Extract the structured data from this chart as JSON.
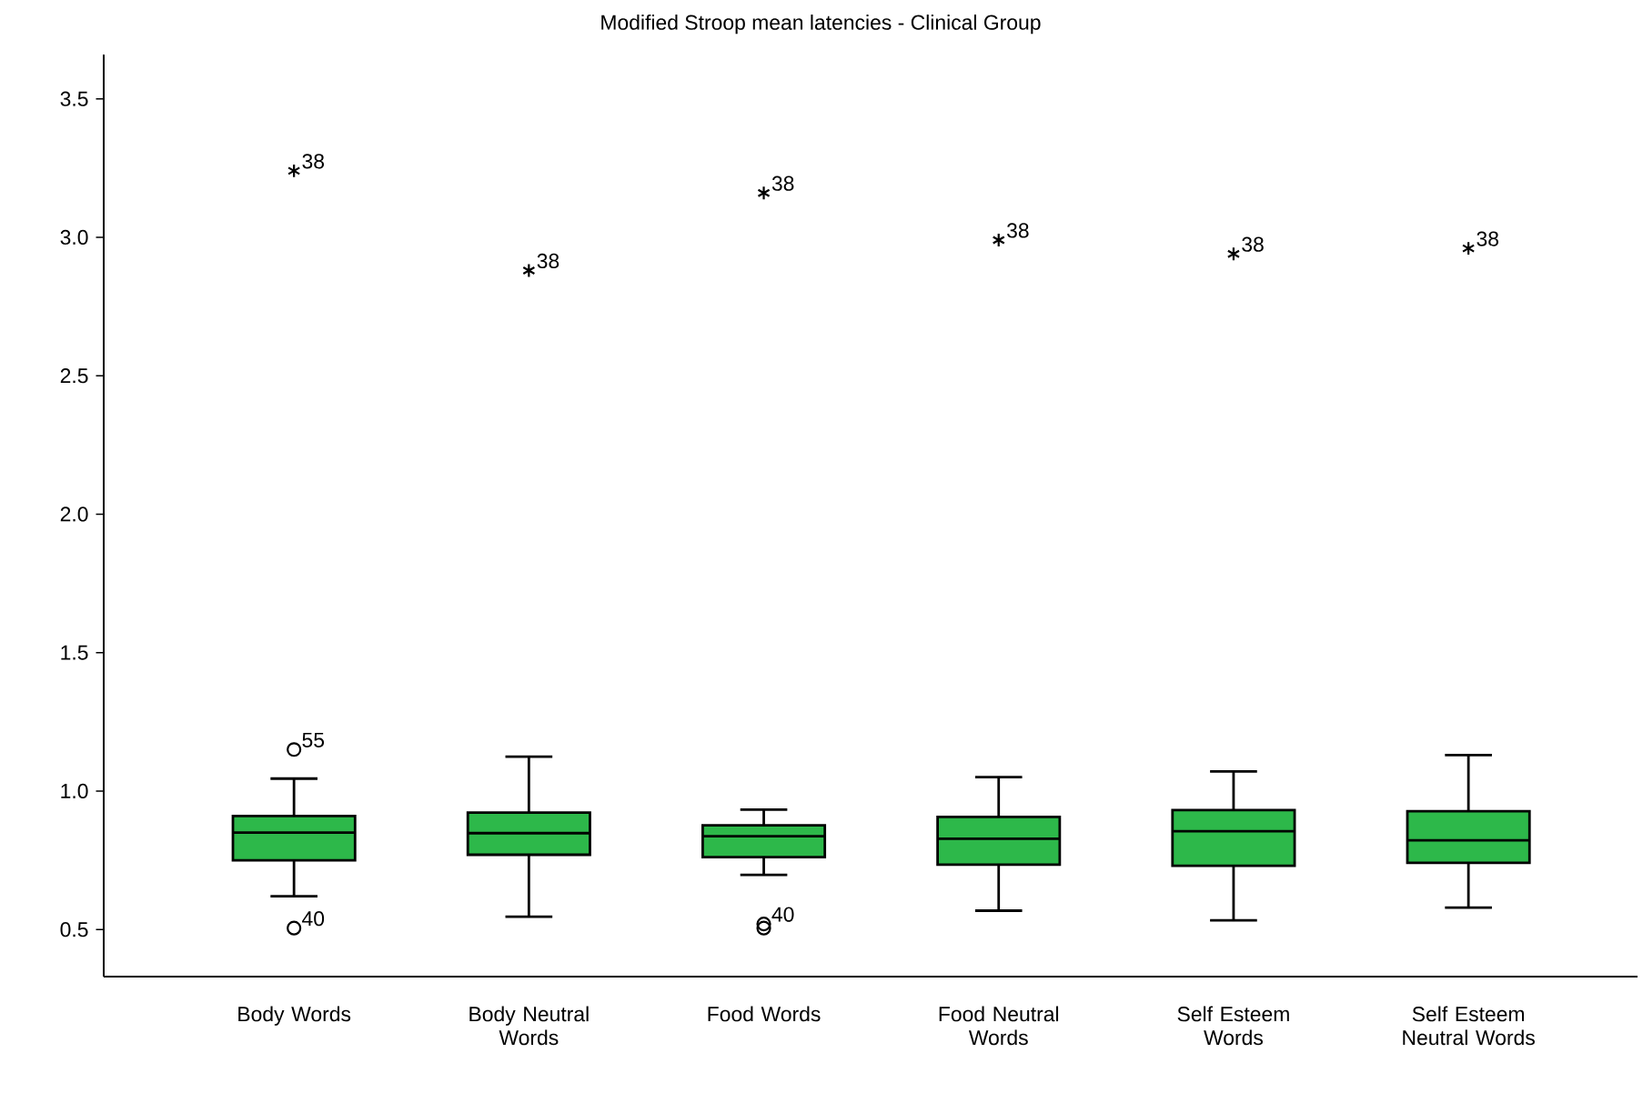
{
  "chart_data": {
    "type": "box",
    "title": "Modified Stroop mean latencies - Clinical Group",
    "categories": [
      "Body Words",
      "Body Neutral Words",
      "Food Words",
      "Food Neutral Words",
      "Self Esteem Words",
      "Self Esteem Neutral Words"
    ],
    "color": "#2db84a",
    "boxes": [
      {
        "low": 0.62,
        "q1": 0.75,
        "median": 0.85,
        "q3": 0.91,
        "high": 1.045,
        "outliers": [
          3.24,
          1.15,
          0.505
        ]
      },
      {
        "low": 0.546,
        "q1": 0.77,
        "median": 0.848,
        "q3": 0.922,
        "high": 1.124,
        "outliers": [
          2.88
        ]
      },
      {
        "low": 0.697,
        "q1": 0.761,
        "median": 0.837,
        "q3": 0.876,
        "high": 0.933,
        "outliers": [
          3.16,
          0.52,
          0.505
        ]
      },
      {
        "low": 0.568,
        "q1": 0.734,
        "median": 0.828,
        "q3": 0.907,
        "high": 1.05,
        "outliers": [
          2.99
        ]
      },
      {
        "low": 0.533,
        "q1": 0.73,
        "median": 0.855,
        "q3": 0.931,
        "high": 1.071,
        "outliers": [
          2.94
        ]
      },
      {
        "low": 0.579,
        "q1": 0.741,
        "median": 0.822,
        "q3": 0.927,
        "high": 1.13,
        "outliers": [
          2.96
        ]
      }
    ],
    "ylim": [
      0.33,
      3.66
    ],
    "yticks": [
      {
        "value": 0.5,
        "label": "0.5"
      },
      {
        "value": 1.0,
        "label": "1.0"
      },
      {
        "value": 1.5,
        "label": "1.5"
      },
      {
        "value": 2.0,
        "label": "2.0"
      },
      {
        "value": 2.5,
        "label": "2.5"
      },
      {
        "value": 3.0,
        "label": "3.0"
      },
      {
        "value": 3.5,
        "label": "3.5"
      }
    ],
    "annotations": [
      "38",
      "55",
      "40",
      "38",
      "38",
      "40",
      "38",
      "38",
      "38"
    ]
  }
}
